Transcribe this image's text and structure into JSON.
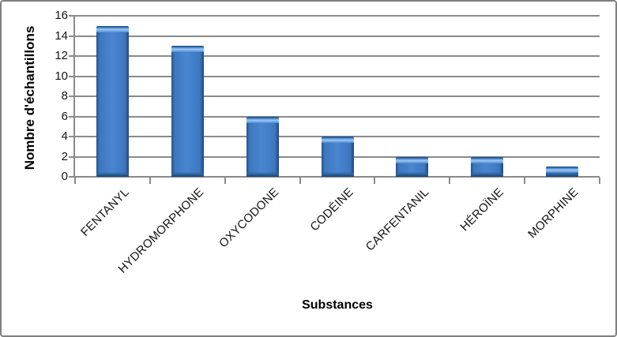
{
  "chart_data": {
    "type": "bar",
    "title": "",
    "categories": [
      "FENTANYL",
      "HYDROMORPHONE",
      "OXYCODONE",
      "CODÉINE",
      "CARFENTANIL",
      "HÉROÏNE",
      "MORPHINE"
    ],
    "values": [
      15,
      13,
      6,
      4,
      2,
      2,
      1
    ],
    "xlabel": "Substances",
    "ylabel": "Nombre d'échantillons",
    "ylim": [
      0,
      16
    ],
    "yticks": [
      0,
      2,
      4,
      6,
      8,
      10,
      12,
      14,
      16
    ],
    "grid": "horizontal",
    "legend": "none",
    "bar_color": "#3f7ec9",
    "bar_edge_dark": "#1f4679",
    "bar_highlight": "#9dc9f4",
    "gridline_color": "#8a8a8a",
    "axis_color": "#8a8a8a",
    "text_color": "#141414",
    "frame_border_color": "#808080",
    "background": "#ffffff"
  }
}
